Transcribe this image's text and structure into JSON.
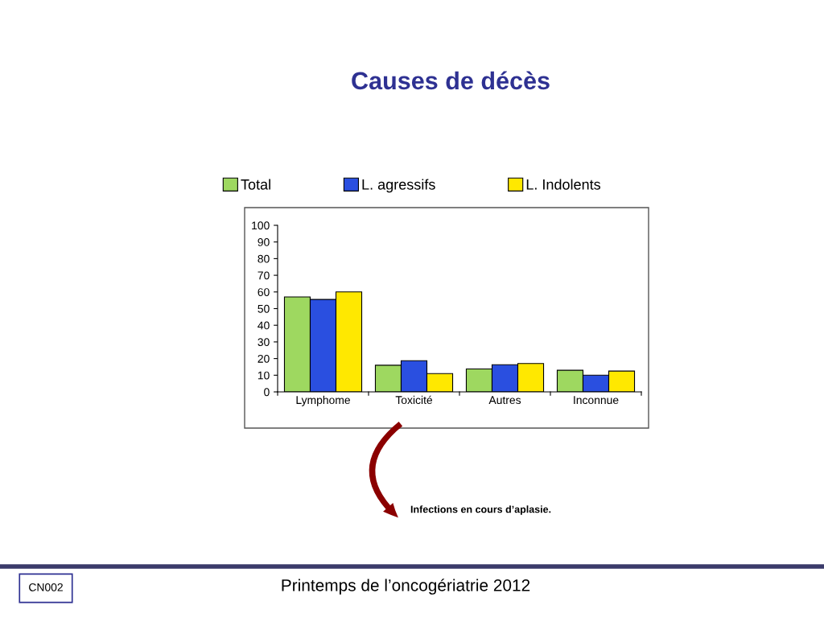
{
  "chart_data": {
    "type": "bar",
    "title": "Causes de décès",
    "categories": [
      "Lymphome",
      "Toxicité",
      "Autres",
      "Inconnue"
    ],
    "series": [
      {
        "name": "Total",
        "color": "#9ed860",
        "values": [
          57,
          16,
          13.8,
          13
        ]
      },
      {
        "name": "L. agressifs",
        "color": "#2a4fe0",
        "values": [
          55.5,
          18.7,
          16.3,
          10
        ]
      },
      {
        "name": "L. Indolents",
        "color": "#ffe800",
        "values": [
          60,
          11,
          17,
          12.5
        ]
      }
    ],
    "ylim": [
      0,
      100
    ],
    "yticks": [
      0,
      10,
      20,
      30,
      40,
      50,
      60,
      70,
      80,
      90,
      100
    ],
    "grid": false,
    "legend": "top",
    "annotations": [
      "Infections en cours d’aplasie.",
      "CN002",
      "Printemps de l’oncogériatrie 2012"
    ]
  }
}
